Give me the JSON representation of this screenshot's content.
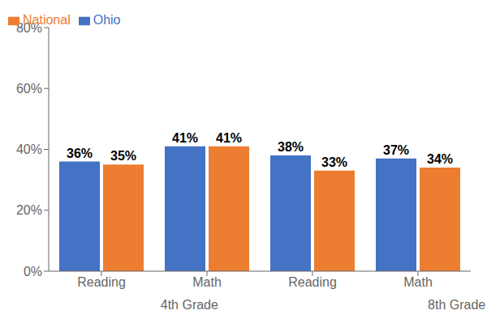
{
  "chart_data": {
    "type": "bar",
    "categories": [
      "Reading",
      "Math",
      "Reading",
      "Math"
    ],
    "annotations": [
      "4th Grade",
      "8th Grade"
    ],
    "series": [
      {
        "name": "Ohio",
        "color": "#4472C4",
        "values": [
          36,
          41,
          38,
          37
        ],
        "value_labels": [
          "36%",
          "41%",
          "38%",
          "37%"
        ]
      },
      {
        "name": "National",
        "color": "#ED7D31",
        "values": [
          35,
          41,
          33,
          34
        ],
        "value_labels": [
          "35%",
          "41%",
          "33%",
          "34%"
        ]
      }
    ],
    "ylim": [
      0,
      80
    ],
    "yticks": [
      {
        "value": 0,
        "label": "0%"
      },
      {
        "value": 20,
        "label": "20%"
      },
      {
        "value": 40,
        "label": "40%"
      },
      {
        "value": 60,
        "label": "60%"
      },
      {
        "value": 80,
        "label": "80%"
      }
    ],
    "grid": false,
    "legend": "upper left",
    "data_labels": true
  }
}
